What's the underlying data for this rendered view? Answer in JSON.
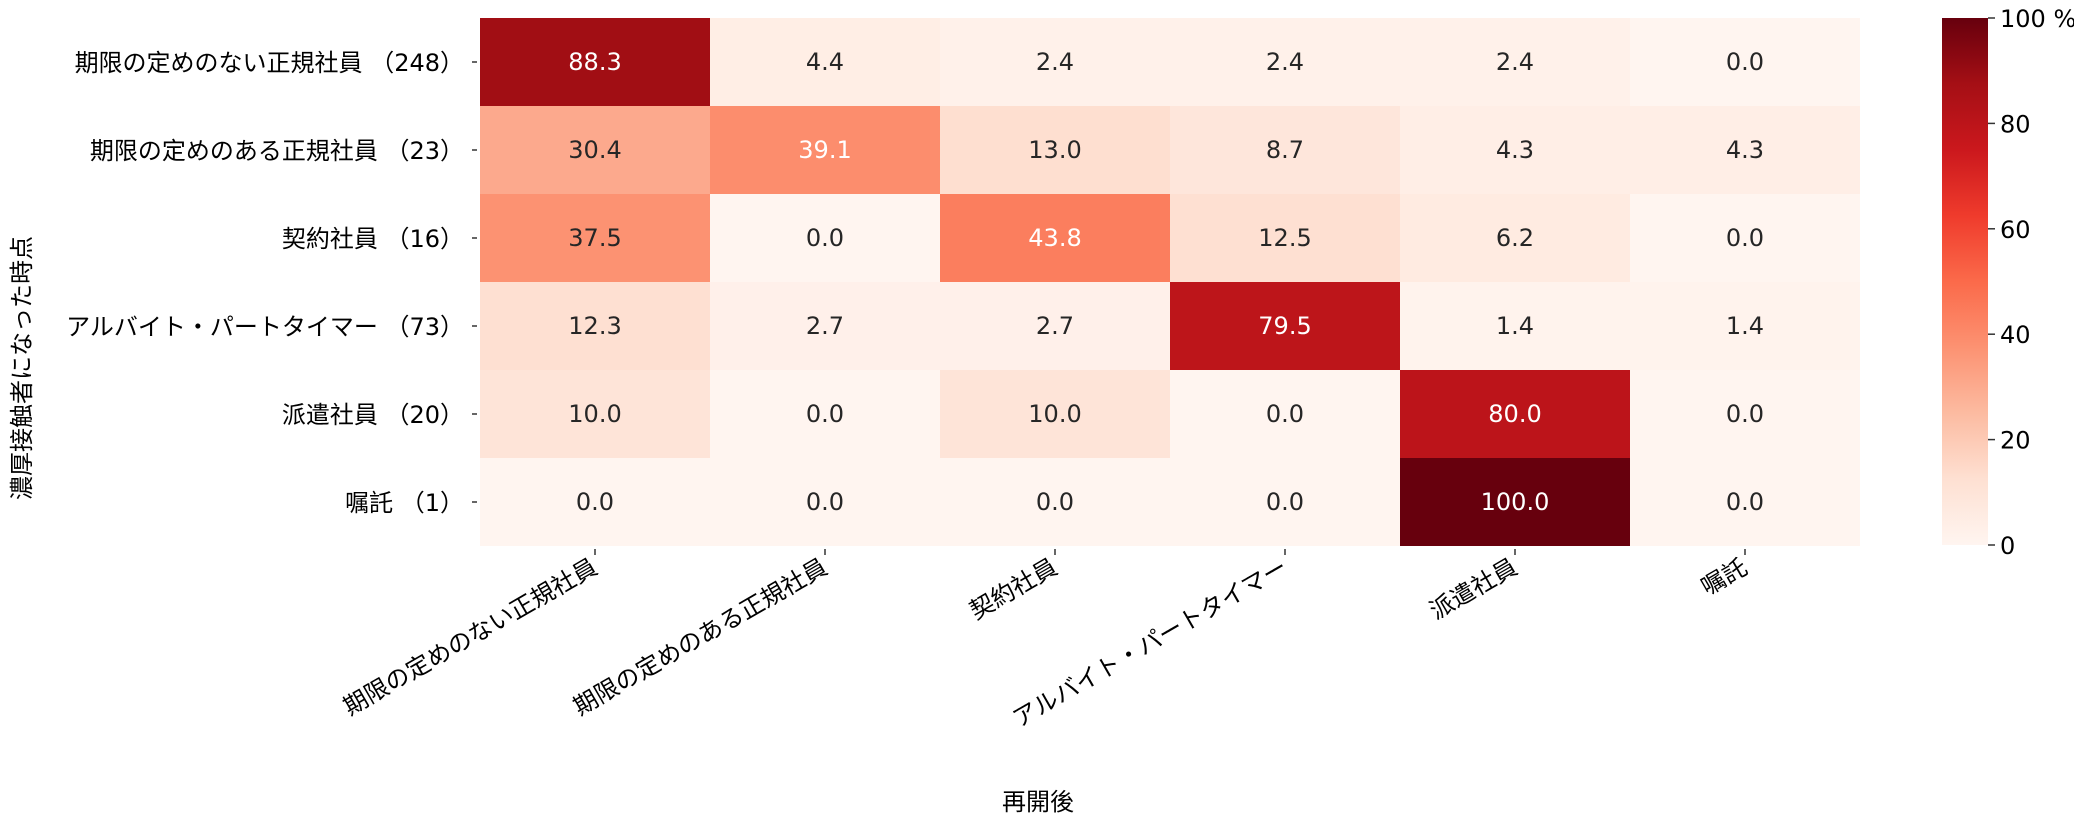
{
  "chart_data": {
    "type": "heatmap",
    "title": "",
    "xlabel": "再開後",
    "ylabel": "濃厚接触者になった時点",
    "x_categories": [
      "期限の定めのない正規社員",
      "期限の定めのある正規社員",
      "契約社員",
      "アルバイト・パートタイマー",
      "派遣社員",
      "嘱託"
    ],
    "y_categories": [
      "期限の定めのない正規社員 （248）",
      "期限の定めのある正規社員 （23）",
      "契約社員 （16）",
      "アルバイト・パートタイマー （73）",
      "派遣社員 （20）",
      "嘱託 （1）"
    ],
    "values": [
      [
        88.3,
        4.4,
        2.4,
        2.4,
        2.4,
        0.0
      ],
      [
        30.4,
        39.1,
        13.0,
        8.7,
        4.3,
        4.3
      ],
      [
        37.5,
        0.0,
        43.8,
        12.5,
        6.2,
        0.0
      ],
      [
        12.3,
        2.7,
        2.7,
        79.5,
        1.4,
        1.4
      ],
      [
        10.0,
        0.0,
        10.0,
        0.0,
        80.0,
        0.0
      ],
      [
        0.0,
        0.0,
        0.0,
        0.0,
        100.0,
        0.0
      ]
    ],
    "value_format": "0.1f",
    "colormap": "Reds",
    "colorbar": {
      "range": [
        0,
        100
      ],
      "ticks": [
        0,
        20,
        40,
        60,
        80,
        100
      ],
      "tick_labels": [
        "0",
        "20",
        "40",
        "60",
        "80",
        "100 %"
      ]
    },
    "grid": false
  }
}
